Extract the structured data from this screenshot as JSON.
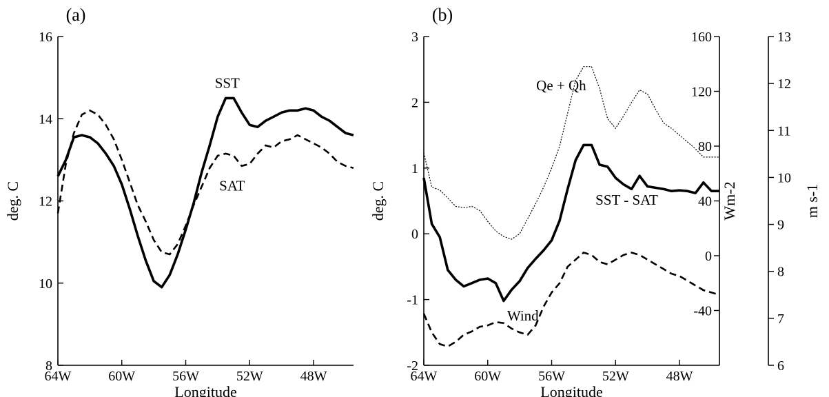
{
  "chart_data": [
    {
      "type": "line",
      "panel_label": "(a)",
      "xlabel": "Longitude",
      "ylabel": "deg. C",
      "xlim": [
        -64,
        -45.5
      ],
      "ylim": [
        8,
        16
      ],
      "x_ticks": [
        -64,
        -60,
        -56,
        -52,
        -48
      ],
      "x_tick_labels": [
        "64W",
        "60W",
        "56W",
        "52W",
        "48W"
      ],
      "y_ticks": [
        8,
        10,
        12,
        14,
        16
      ],
      "y_tick_labels": [
        "8",
        "10",
        "12",
        "14",
        "16"
      ],
      "grid": false,
      "series": [
        {
          "name": "SST",
          "style": "solid-thick",
          "x": [
            -64,
            -63.5,
            -63,
            -62.5,
            -62,
            -61.5,
            -61,
            -60.5,
            -60,
            -59.5,
            -59,
            -58.5,
            -58,
            -57.5,
            -57,
            -56.5,
            -56,
            -55.5,
            -55,
            -54.5,
            -54,
            -53.5,
            -53,
            -52.5,
            -52,
            -51.5,
            -51,
            -50.5,
            -50,
            -49.5,
            -49,
            -48.5,
            -48,
            -47.5,
            -47,
            -46.5,
            -46,
            -45.5
          ],
          "y": [
            12.6,
            13.0,
            13.55,
            13.6,
            13.55,
            13.4,
            13.15,
            12.85,
            12.4,
            11.8,
            11.15,
            10.55,
            10.05,
            9.9,
            10.2,
            10.7,
            11.3,
            11.95,
            12.7,
            13.35,
            14.05,
            14.5,
            14.5,
            14.15,
            13.85,
            13.8,
            13.95,
            14.05,
            14.15,
            14.2,
            14.2,
            14.25,
            14.2,
            14.05,
            13.95,
            13.8,
            13.65,
            13.6
          ]
        },
        {
          "name": "SAT",
          "style": "dashed",
          "x": [
            -64,
            -63.5,
            -63,
            -62.5,
            -62,
            -61.5,
            -61,
            -60.5,
            -60,
            -59.5,
            -59,
            -58.5,
            -58,
            -57.5,
            -57,
            -56.5,
            -56,
            -55.5,
            -55,
            -54.5,
            -54,
            -53.5,
            -53,
            -52.5,
            -52,
            -51.5,
            -51,
            -50.5,
            -50,
            -49.5,
            -49,
            -48.5,
            -48,
            -47.5,
            -47,
            -46.5,
            -46,
            -45.5
          ],
          "y": [
            11.7,
            12.9,
            13.65,
            14.1,
            14.2,
            14.1,
            13.85,
            13.5,
            13.0,
            12.45,
            11.9,
            11.5,
            11.05,
            10.75,
            10.7,
            10.95,
            11.4,
            11.9,
            12.35,
            12.8,
            13.1,
            13.15,
            13.1,
            12.85,
            12.9,
            13.15,
            13.35,
            13.3,
            13.45,
            13.5,
            13.6,
            13.5,
            13.4,
            13.3,
            13.15,
            12.95,
            12.85,
            12.8
          ]
        }
      ],
      "annotations": [
        {
          "text": "SST",
          "x": -53.4,
          "y": 14.75
        },
        {
          "text": "SAT",
          "x": -53.1,
          "y": 12.25
        }
      ]
    },
    {
      "type": "line",
      "panel_label": "(b)",
      "xlabel": "Longitude",
      "ylabel": "deg. C",
      "xlim": [
        -64,
        -45.5
      ],
      "ylim": [
        -2,
        3
      ],
      "x_ticks": [
        -64,
        -60,
        -56,
        -52,
        -48
      ],
      "x_tick_labels": [
        "64W",
        "60W",
        "56W",
        "52W",
        "48W"
      ],
      "y_ticks": [
        -2,
        -1,
        0,
        1,
        2,
        3
      ],
      "y_tick_labels": [
        "-2",
        "-1",
        "0",
        "1",
        "2",
        "3"
      ],
      "y2label": "Wm-2",
      "y2lim": [
        -80,
        160
      ],
      "y2_ticks": [
        -40,
        0,
        40,
        80,
        120,
        160
      ],
      "y2_tick_labels": [
        "-40",
        "0",
        "40",
        "80",
        "120",
        "160"
      ],
      "y3label": "m s-1",
      "y3lim": [
        6,
        13
      ],
      "y3_ticks": [
        6,
        7,
        8,
        9,
        10,
        11,
        12,
        13
      ],
      "y3_tick_labels": [
        "6",
        "7",
        "8",
        "9",
        "10",
        "11",
        "12",
        "13"
      ],
      "grid": false,
      "series": [
        {
          "name": "SST - SAT",
          "axis": "left",
          "style": "solid-thick",
          "x": [
            -64,
            -63.5,
            -63,
            -62.5,
            -62,
            -61.5,
            -61,
            -60.5,
            -60,
            -59.5,
            -59,
            -58.5,
            -58,
            -57.5,
            -57,
            -56.5,
            -56,
            -55.5,
            -55,
            -54.5,
            -54,
            -53.5,
            -53,
            -52.5,
            -52,
            -51.5,
            -51,
            -50.5,
            -50,
            -49.5,
            -49,
            -48.5,
            -48,
            -47.5,
            -47,
            -46.5,
            -46,
            -45.5
          ],
          "y": [
            0.85,
            0.15,
            -0.05,
            -0.55,
            -0.7,
            -0.8,
            -0.75,
            -0.7,
            -0.68,
            -0.75,
            -1.02,
            -0.85,
            -0.72,
            -0.52,
            -0.38,
            -0.25,
            -0.1,
            0.2,
            0.68,
            1.12,
            1.35,
            1.35,
            1.05,
            1.02,
            0.85,
            0.75,
            0.68,
            0.88,
            0.72,
            0.7,
            0.68,
            0.65,
            0.66,
            0.65,
            0.62,
            0.78,
            0.65,
            0.65
          ]
        },
        {
          "name": "Qe + Qh",
          "axis": "right",
          "style": "dotted-thin",
          "x": [
            -64,
            -63.5,
            -63,
            -62.5,
            -62,
            -61.5,
            -61,
            -60.5,
            -60,
            -59.5,
            -59,
            -58.5,
            -58,
            -57.5,
            -57,
            -56.5,
            -56,
            -55.5,
            -55,
            -54.5,
            -54,
            -53.5,
            -53,
            -52.5,
            -52,
            -51.5,
            -51,
            -50.5,
            -50,
            -49.5,
            -49,
            -48.5,
            -48,
            -47.5,
            -47,
            -46.5,
            -46,
            -45.5
          ],
          "y": [
            75,
            50,
            48,
            42,
            36,
            35,
            36,
            33,
            25,
            18,
            14,
            12,
            16,
            27,
            38,
            50,
            64,
            80,
            104,
            128,
            138,
            138,
            122,
            100,
            93,
            102,
            112,
            121,
            118,
            107,
            97,
            93,
            88,
            83,
            78,
            72,
            72,
            72
          ]
        },
        {
          "name": "Wind",
          "axis": "far-right",
          "style": "dashed",
          "x": [
            -64,
            -63.5,
            -63,
            -62.5,
            -62,
            -61.5,
            -61,
            -60.5,
            -60,
            -59.5,
            -59,
            -58.5,
            -58,
            -57.5,
            -57,
            -56.5,
            -56,
            -55.5,
            -55,
            -54.5,
            -54,
            -53.5,
            -53,
            -52.5,
            -52,
            -51.5,
            -51,
            -50.5,
            -50,
            -49.5,
            -49,
            -48.5,
            -48,
            -47.5,
            -47,
            -46.5,
            -46,
            -45.5
          ],
          "y": [
            7.1,
            6.7,
            6.45,
            6.4,
            6.5,
            6.65,
            6.72,
            6.82,
            6.85,
            6.92,
            6.9,
            6.78,
            6.7,
            6.65,
            6.85,
            7.25,
            7.55,
            7.75,
            8.1,
            8.25,
            8.4,
            8.35,
            8.2,
            8.15,
            8.25,
            8.35,
            8.4,
            8.35,
            8.25,
            8.15,
            8.05,
            7.95,
            7.9,
            7.8,
            7.7,
            7.6,
            7.55,
            7.5
          ]
        }
      ],
      "annotations": [
        {
          "text": "Qe + Qh",
          "x": -55.4,
          "y": 2.18
        },
        {
          "text": "SST - SAT",
          "x": -51.3,
          "y": 0.44
        },
        {
          "text": "Wind",
          "x": -57.8,
          "y": -1.32
        }
      ]
    }
  ]
}
